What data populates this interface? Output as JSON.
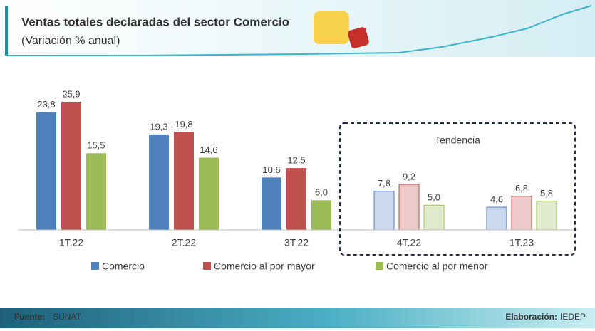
{
  "header": {
    "title": "Ventas totales declaradas del sector Comercio",
    "subtitle": "(Variación % anual)"
  },
  "chart_data": {
    "type": "bar",
    "categories": [
      "1T.22",
      "2T.22",
      "3T.22",
      "4T.22",
      "1T.23"
    ],
    "series": [
      {
        "name": "Comercio",
        "color": "#4f81bd",
        "values": [
          23.8,
          19.3,
          10.6,
          7.8,
          4.6
        ],
        "value_labels": [
          "23,8",
          "19,3",
          "10,6",
          "7,8",
          "4,6"
        ]
      },
      {
        "name": "Comercio al por mayor",
        "color": "#c0504d",
        "values": [
          25.9,
          19.8,
          12.5,
          9.2,
          6.8
        ],
        "value_labels": [
          "25,9",
          "19,8",
          "12,5",
          "9,2",
          "6,8"
        ]
      },
      {
        "name": "Comercio al por menor",
        "color": "#9bbb59",
        "values": [
          15.5,
          14.6,
          6.0,
          5.0,
          5.8
        ],
        "value_labels": [
          "15,5",
          "14,6",
          "6,0",
          "5,0",
          "5,8"
        ]
      }
    ],
    "annotations": [
      {
        "text": "Tendencia",
        "categories": [
          "4T.22",
          "1T.23"
        ]
      }
    ],
    "legend": "bottom"
  },
  "footer": {
    "source_label": "Fuente:",
    "source": "SUNAT",
    "credit_label": "Elaboración:",
    "credit": "IEDEP"
  }
}
